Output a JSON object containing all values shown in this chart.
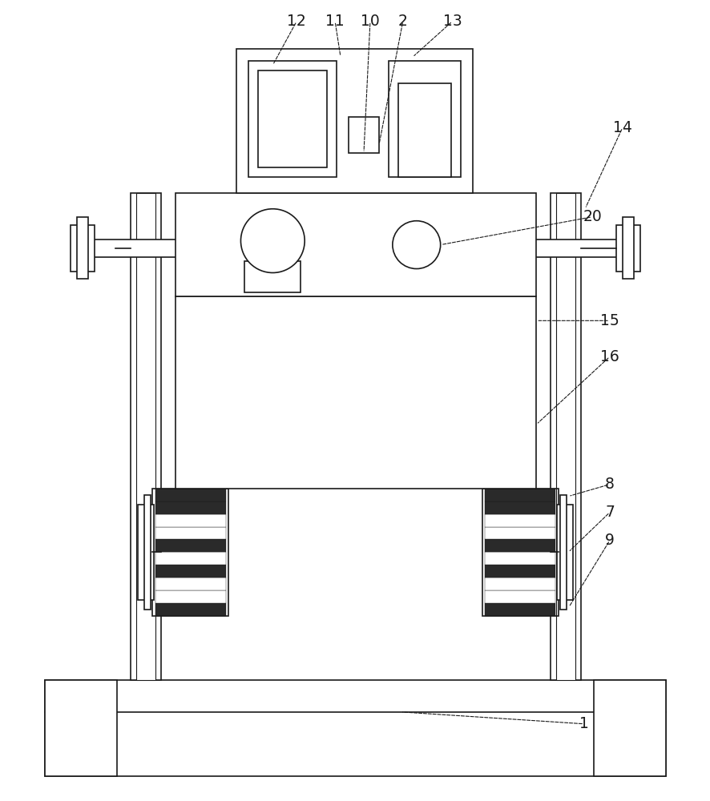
{
  "bg_color": "#ffffff",
  "line_color": "#1a1a1a",
  "fig_width": 8.87,
  "fig_height": 10.0
}
